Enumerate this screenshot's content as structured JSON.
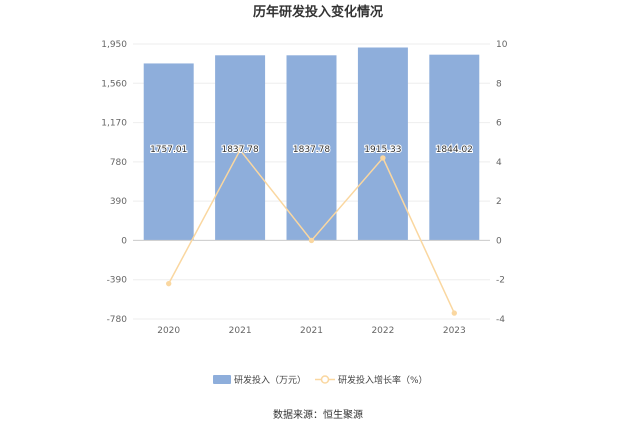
{
  "colors": {
    "bar": "#8eaedb",
    "line": "#fad7a0",
    "axis": "#cccccc",
    "grid": "#eeeeee",
    "text": "#666666"
  },
  "chart_data": {
    "type": "bar+line",
    "title": "历年研发投入变化情况",
    "categories": [
      "2020",
      "2021",
      "2021",
      "2022",
      "2023"
    ],
    "series": [
      {
        "name": "研发投入（万元）",
        "type": "bar",
        "axis": "left",
        "values": [
          1757.01,
          1837.78,
          1837.78,
          1915.33,
          1844.02
        ],
        "labels": [
          "1757.01",
          "1837.78",
          "1837.78",
          "1915.33",
          "1844.02"
        ]
      },
      {
        "name": "研发投入增长率（%）",
        "type": "line",
        "axis": "right",
        "values": [
          -2.2,
          4.6,
          0.0,
          4.2,
          -3.7
        ]
      }
    ],
    "y_left": {
      "ticks": [
        1950,
        1560,
        1170,
        780,
        390,
        0,
        -390,
        -780
      ],
      "tick_labels": [
        "1,950",
        "1,560",
        "1,170",
        "780",
        "390",
        "0",
        "-390",
        "-780"
      ],
      "ylim": [
        -780,
        1950
      ]
    },
    "y_right": {
      "ticks": [
        10,
        8,
        6,
        4,
        2,
        0,
        -2,
        -4
      ],
      "tick_labels": [
        "10",
        "8",
        "6",
        "4",
        "2",
        "0",
        "-2",
        "-4"
      ],
      "ylim": [
        -4,
        10
      ]
    },
    "grid": true,
    "legend_position": "bottom-center"
  },
  "source": "数据来源：恒生聚源"
}
